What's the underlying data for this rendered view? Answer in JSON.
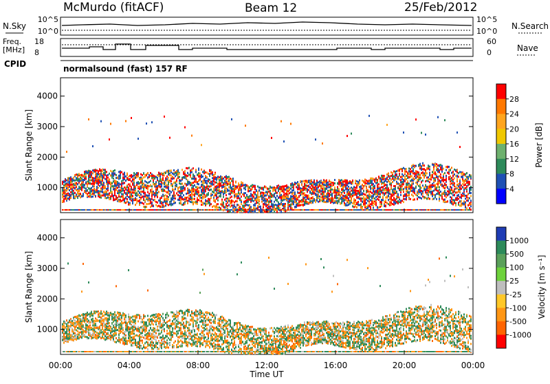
{
  "header": {
    "station": "McMurdo (fitACF)",
    "beam": "Beam 12",
    "date": "25/Feb/2012"
  },
  "top_panels": {
    "nsky_label": "N.Sky",
    "nsearch_label": "N.Search",
    "noise_ticks": [
      "10^5",
      "10^0"
    ],
    "freq_label_1": "Freq.",
    "freq_label_2": "[MHz]",
    "freq_ticks": [
      "18",
      "8"
    ],
    "nave_label": "Nave",
    "nave_ticks": [
      "60",
      "0"
    ],
    "cpid_label": "CPID",
    "cpid_text": "normalsound (fast) 157 RF"
  },
  "chart_data": [
    {
      "type": "heatmap",
      "title": "",
      "ylabel": "Slant Range [km]",
      "xlabel": "",
      "ylim": [
        180,
        4600
      ],
      "yticks": [
        "4000",
        "3000",
        "2000",
        "1000"
      ],
      "colorbar_label": "Power [dB]",
      "colorbar_ticks": [
        "28",
        "24",
        "20",
        "16",
        "12",
        "8",
        "4"
      ],
      "colorbar_colors": [
        "#ff0000",
        "#ff7800",
        "#ffa51e",
        "#f0c800",
        "#6eb16e",
        "#2d8a5a",
        "#1e50b4",
        "#0000ff"
      ]
    },
    {
      "type": "heatmap",
      "title": "",
      "ylabel": "Slant Range [km]",
      "xlabel": "Time UT",
      "ylim": [
        180,
        4600
      ],
      "yticks": [
        "4000",
        "3000",
        "2000",
        "1000"
      ],
      "xticks": [
        "00:00",
        "04:00",
        "08:00",
        "12:00",
        "16:00",
        "20:00",
        "00:00"
      ],
      "colorbar_label": "Velocity [m s⁻¹]",
      "colorbar_ticks": [
        "1000",
        "500",
        "100",
        "25",
        "-25",
        "-100",
        "-500",
        "-1000"
      ],
      "colorbar_colors": [
        "#1e3cb4",
        "#2d8a5a",
        "#5aa05a",
        "#6ed23c",
        "#bebebe",
        "#ffc828",
        "#ff9614",
        "#ff6400",
        "#ff0000"
      ]
    }
  ]
}
